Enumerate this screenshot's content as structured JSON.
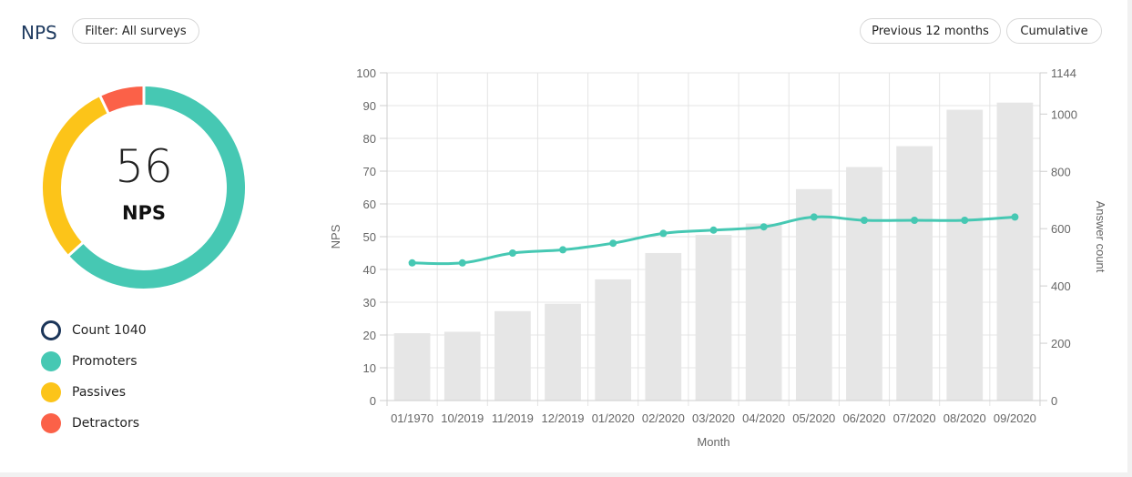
{
  "header": {
    "title": "NPS",
    "filter_label": "Filter: All surveys",
    "period_label": "Previous 12 months",
    "mode_label": "Cumulative"
  },
  "donut": {
    "value": "56",
    "label": "NPS",
    "segments": [
      {
        "name": "Promoters",
        "fraction": 0.633,
        "color": "#46c8b3"
      },
      {
        "name": "Passives",
        "fraction": 0.296,
        "color": "#fcc419"
      },
      {
        "name": "Detractors",
        "fraction": 0.071,
        "color": "#fb6148"
      }
    ]
  },
  "legend": [
    {
      "label": "Count 1040",
      "type": "ring",
      "color": "#1b3559"
    },
    {
      "label": "Promoters",
      "type": "dot",
      "color": "#46c8b3"
    },
    {
      "label": "Passives",
      "type": "dot",
      "color": "#fcc419"
    },
    {
      "label": "Detractors",
      "type": "dot",
      "color": "#fb6148"
    }
  ],
  "chart_data": {
    "type": "bar",
    "categories": [
      "01/1970",
      "10/2019",
      "11/2019",
      "12/2019",
      "01/2020",
      "02/2020",
      "03/2020",
      "04/2020",
      "05/2020",
      "06/2020",
      "07/2020",
      "08/2020",
      "09/2020"
    ],
    "series": [
      {
        "type": "bar",
        "axis": "right",
        "color": "#e6e6e6",
        "values": [
          235,
          240,
          312,
          338,
          423,
          515,
          578,
          618,
          738,
          815,
          888,
          1015,
          1040
        ]
      },
      {
        "type": "line",
        "axis": "left",
        "color": "#46c8b3",
        "values": [
          42,
          42,
          45,
          46,
          48,
          51,
          52,
          53,
          56,
          55,
          55,
          55,
          56
        ]
      }
    ],
    "xlabel": "Month",
    "ylabel": "NPS",
    "y2label": "Answer count",
    "ylim": [
      0,
      100
    ],
    "y2lim": [
      0,
      1144
    ],
    "yticks": [
      0,
      10,
      20,
      30,
      40,
      50,
      60,
      70,
      80,
      90,
      100
    ],
    "y2ticks": [
      0,
      200,
      400,
      600,
      800,
      1000,
      1144
    ],
    "grid": true
  }
}
